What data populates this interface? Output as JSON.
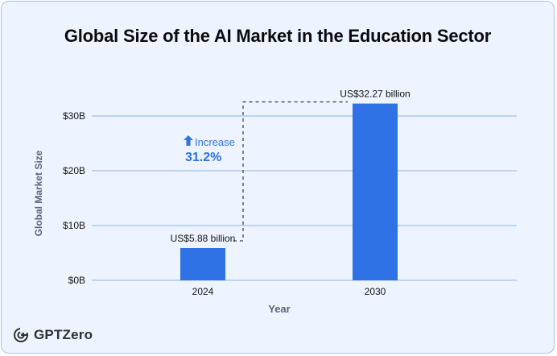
{
  "title": "Global Size of the AI Market in the Education Sector",
  "brand": "GPTZero",
  "colors": {
    "bar": "#2f72e6",
    "accent": "#2f72e6",
    "grid": "#8fb0ea",
    "background": "#eef4ff"
  },
  "annotation": {
    "icon": "arrow-up-icon",
    "label": "Increase",
    "value": "31.2%"
  },
  "chart_data": {
    "type": "bar",
    "categories": [
      "2024",
      "2030"
    ],
    "values": [
      5.88,
      32.27
    ],
    "data_labels": [
      "US$5.88 billion",
      "US$32.27 billion"
    ],
    "xlabel": "Year",
    "ylabel": "Global Market Size",
    "ylim": [
      0,
      30
    ],
    "yticks": [
      0,
      10,
      20,
      30
    ],
    "ytick_labels": [
      "$0B",
      "$10B",
      "$20B",
      "$30B"
    ],
    "grid": true
  }
}
